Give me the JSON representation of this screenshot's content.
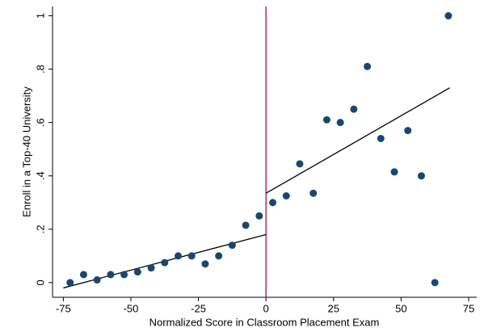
{
  "chart_data": {
    "type": "scatter",
    "x_label": "Normalized Score in Classroom Placement Exam",
    "y_label": "Enroll in a Top-40 University",
    "x": [
      -72.5,
      -67.5,
      -62.5,
      -57.5,
      -52.5,
      -47.5,
      -42.5,
      -37.5,
      -32.5,
      -27.5,
      -22.5,
      -17.5,
      -12.5,
      -7.5,
      -2.5,
      2.5,
      7.5,
      12.5,
      17.5,
      22.5,
      27.5,
      32.5,
      37.5,
      42.5,
      47.5,
      52.5,
      57.5,
      62.5,
      67.5
    ],
    "series": [
      {
        "color": "#1a476f",
        "values": [
          0.0,
          0.03,
          0.01,
          0.03,
          0.03,
          0.04,
          0.055,
          0.075,
          0.1,
          0.1,
          0.07,
          0.1,
          0.14,
          0.215,
          0.25,
          0.3,
          0.325,
          0.445,
          0.335,
          0.61,
          0.6,
          0.65,
          0.81,
          0.54,
          0.415,
          0.57,
          0.4,
          0.0,
          1.0
        ]
      }
    ],
    "fits": [
      {
        "color": "#000000",
        "x": [
          -75,
          0
        ],
        "values": [
          -0.02,
          0.18
        ]
      },
      {
        "color": "#000000",
        "x": [
          0,
          68
        ],
        "values": [
          0.335,
          0.73
        ]
      }
    ],
    "cutoff": {
      "x": 0,
      "color": "#a3123f"
    },
    "xlim": [
      -79,
      78
    ],
    "ylim": [
      -0.055,
      1.035
    ],
    "xticks": [
      -75,
      -50,
      -25,
      0,
      25,
      50,
      75
    ],
    "yticks": [
      0,
      {
        "value": 0.2,
        "label": ".2"
      },
      {
        "value": 0.4,
        "label": ".4"
      },
      {
        "value": 0.6,
        "label": ".6"
      },
      {
        "value": 0.8,
        "label": ".8"
      },
      1
    ],
    "grid": false
  }
}
